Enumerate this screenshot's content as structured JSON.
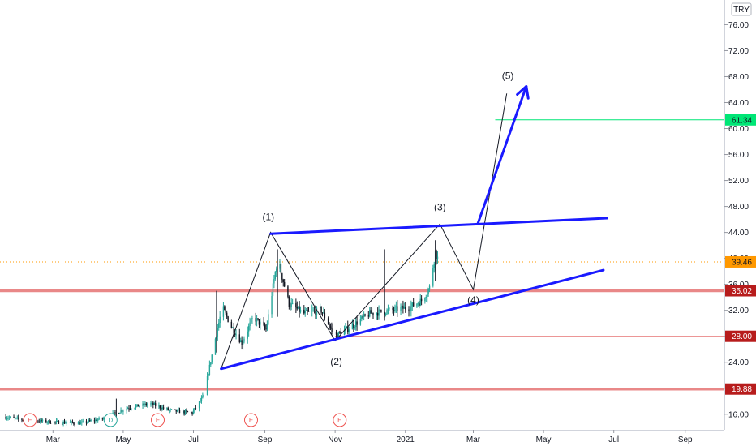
{
  "currency": "TRY",
  "chart_data": {
    "type": "candlestick",
    "y_axis": {
      "range": [
        13.6,
        79.8
      ],
      "scale": "linear",
      "position": "right",
      "ticks": [
        "16.00",
        "20.00",
        "24.00",
        "28.00",
        "32.00",
        "36.00",
        "40.00",
        "44.00",
        "48.00",
        "52.00",
        "56.00",
        "60.00",
        "64.00",
        "68.00",
        "72.00",
        "76.00"
      ]
    },
    "x_axis": {
      "range": [
        "2020-01-15",
        "2021-10-05"
      ],
      "ticks": [
        {
          "date": "2020-03-01",
          "label": "Mar"
        },
        {
          "date": "2020-05-01",
          "label": "May"
        },
        {
          "date": "2020-07-01",
          "label": "Jul"
        },
        {
          "date": "2020-09-01",
          "label": "Sep"
        },
        {
          "date": "2020-11-01",
          "label": "Nov"
        },
        {
          "date": "2021-01-01",
          "label": "2021"
        },
        {
          "date": "2021-03-01",
          "label": "Mar"
        },
        {
          "date": "2021-05-01",
          "label": "May"
        },
        {
          "date": "2021-07-01",
          "label": "Jul"
        },
        {
          "date": "2021-09-01",
          "label": "Sep"
        }
      ]
    },
    "price_path": [
      {
        "date": "2020-01-18",
        "price": 15.6
      },
      {
        "date": "2020-02-05",
        "price": 15.1
      },
      {
        "date": "2020-03-01",
        "price": 14.8
      },
      {
        "date": "2020-03-25",
        "price": 14.6
      },
      {
        "date": "2020-04-15",
        "price": 15.4
      },
      {
        "date": "2020-05-05",
        "price": 17.0
      },
      {
        "date": "2020-05-25",
        "price": 17.6
      },
      {
        "date": "2020-06-10",
        "price": 16.6
      },
      {
        "date": "2020-06-30",
        "price": 16.2
      },
      {
        "date": "2020-07-10",
        "price": 18.8
      },
      {
        "date": "2020-07-18",
        "price": 26.0
      },
      {
        "date": "2020-07-26",
        "price": 32.5
      },
      {
        "date": "2020-08-03",
        "price": 29.5
      },
      {
        "date": "2020-08-12",
        "price": 27.0
      },
      {
        "date": "2020-08-22",
        "price": 31.0
      },
      {
        "date": "2020-09-02",
        "price": 29.0
      },
      {
        "date": "2020-09-12",
        "price": 40.0
      },
      {
        "date": "2020-09-22",
        "price": 33.0
      },
      {
        "date": "2020-10-05",
        "price": 31.5
      },
      {
        "date": "2020-10-20",
        "price": 32.0
      },
      {
        "date": "2020-11-01",
        "price": 28.0
      },
      {
        "date": "2020-11-15",
        "price": 29.5
      },
      {
        "date": "2020-12-01",
        "price": 31.5
      },
      {
        "date": "2020-12-20",
        "price": 32.0
      },
      {
        "date": "2021-01-05",
        "price": 32.5
      },
      {
        "date": "2021-01-15",
        "price": 33.5
      },
      {
        "date": "2021-01-22",
        "price": 35.5
      },
      {
        "date": "2021-01-27",
        "price": 41.0
      },
      {
        "date": "2021-01-30",
        "price": 39.5
      }
    ],
    "spikes": [
      {
        "date": "2020-04-25",
        "high": 18.4,
        "low": 14.9
      },
      {
        "date": "2020-07-21",
        "high": 35.0,
        "low": 25.5
      },
      {
        "date": "2020-09-12",
        "high": 41.4,
        "low": 31.0
      },
      {
        "date": "2020-12-14",
        "high": 41.4,
        "low": 30.4
      },
      {
        "date": "2021-01-27",
        "high": 42.8,
        "low": 36.5
      }
    ],
    "horizontal_levels": [
      {
        "price": 35.02,
        "label": "35.02",
        "style": "thick",
        "color": "#e57373"
      },
      {
        "price": 19.88,
        "label": "19.88",
        "style": "thick",
        "color": "#e57373"
      },
      {
        "price": 28.0,
        "label": "28.00",
        "style": "thin",
        "color": "#e57373"
      },
      {
        "price": 61.34,
        "label": "61.34",
        "style": "thin",
        "color": "#00e676"
      },
      {
        "price": 39.46,
        "label": "39.46",
        "style": "dotted",
        "color": "#ff9800",
        "last_price": true
      }
    ],
    "trendlines": [
      {
        "name": "resistance",
        "from": {
          "date": "2020-09-06",
          "price": 43.8
        },
        "to": {
          "date": "2021-06-25",
          "price": 46.2
        },
        "color": "#1a1aff"
      },
      {
        "name": "support",
        "from": {
          "date": "2020-07-25",
          "price": 23.0
        },
        "to": {
          "date": "2021-06-22",
          "price": 38.2
        },
        "color": "#1a1aff"
      },
      {
        "name": "breakout-projection",
        "from": {
          "date": "2021-03-05",
          "price": 45.4
        },
        "to": {
          "date": "2021-04-16",
          "price": 66.5
        },
        "color": "#1a1aff",
        "arrow": true
      }
    ],
    "wave_path": [
      {
        "date": "2020-07-25",
        "price": 23.0
      },
      {
        "date": "2020-09-06",
        "price": 44.0
      },
      {
        "date": "2020-11-01",
        "price": 27.3
      },
      {
        "date": "2021-01-31",
        "price": 45.3
      },
      {
        "date": "2021-03-01",
        "price": 35.2
      },
      {
        "date": "2021-03-30",
        "price": 65.4
      }
    ],
    "wave_labels": [
      {
        "text": "(1)",
        "date": "2020-09-04",
        "price": 45.9
      },
      {
        "text": "(2)",
        "date": "2020-11-02",
        "price": 23.6
      },
      {
        "text": "(3)",
        "date": "2021-01-31",
        "price": 47.4
      },
      {
        "text": "(4)",
        "date": "2021-03-01",
        "price": 33.1
      },
      {
        "text": "(5)",
        "date": "2021-03-31",
        "price": 67.6
      }
    ],
    "event_markers": [
      {
        "date": "2020-02-10",
        "letter": "E",
        "color": "#ef5350"
      },
      {
        "date": "2020-04-20",
        "letter": "D",
        "color": "#26a69a"
      },
      {
        "date": "2020-05-31",
        "letter": "E",
        "color": "#ef5350"
      },
      {
        "date": "2020-08-20",
        "letter": "E",
        "color": "#ef5350"
      },
      {
        "date": "2020-11-05",
        "letter": "E",
        "color": "#ef5350"
      }
    ],
    "colors": {
      "up": "#26a69a",
      "down": "#131722",
      "trend": "#1a1aff"
    }
  }
}
